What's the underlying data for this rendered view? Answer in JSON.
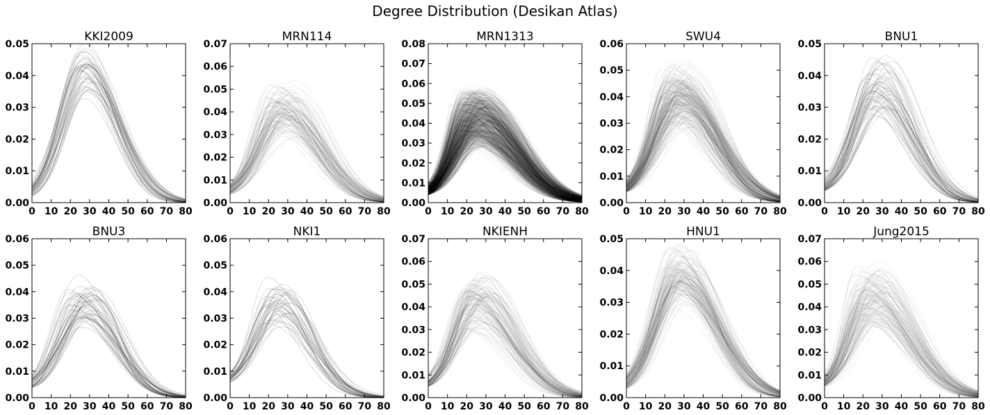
{
  "figure": {
    "title": "Degree Distribution (Desikan Atlas)"
  },
  "chart_data": [
    {
      "type": "line",
      "title": "KKI2009",
      "xlim": [
        0,
        80
      ],
      "ylim": [
        0,
        0.05
      ],
      "xticks": [
        "0",
        "10",
        "20",
        "30",
        "40",
        "50",
        "60",
        "70",
        "80"
      ],
      "yticks": [
        "0.00",
        "0.01",
        "0.02",
        "0.03",
        "0.04",
        "0.05"
      ],
      "series_count": 42,
      "peak_x": 27,
      "peak_y": 0.043,
      "peak_range_x": [
        22,
        34
      ],
      "peak_range_y": [
        0.03,
        0.048
      ],
      "tail_x": 72,
      "start_y": 0.001
    },
    {
      "type": "line",
      "title": "MRN114",
      "xlim": [
        0,
        80
      ],
      "ylim": [
        0,
        0.07
      ],
      "xticks": [
        "0",
        "10",
        "20",
        "30",
        "40",
        "50",
        "60",
        "70",
        "80"
      ],
      "yticks": [
        "0.00",
        "0.01",
        "0.02",
        "0.03",
        "0.04",
        "0.05",
        "0.06",
        "0.07"
      ],
      "series_count": 110,
      "peak_x": 25,
      "peak_y": 0.04,
      "peak_range_x": [
        16,
        42
      ],
      "peak_range_y": [
        0.025,
        0.061
      ],
      "tail_x": 78,
      "start_y": 0.003
    },
    {
      "type": "line",
      "title": "MRN1313",
      "xlim": [
        0,
        80
      ],
      "ylim": [
        0,
        0.08
      ],
      "xticks": [
        "0",
        "10",
        "20",
        "30",
        "40",
        "50",
        "60",
        "70",
        "80"
      ],
      "yticks": [
        "0.00",
        "0.01",
        "0.02",
        "0.03",
        "0.04",
        "0.05",
        "0.06",
        "0.07",
        "0.08"
      ],
      "series_count": 700,
      "peak_x": 22,
      "peak_y": 0.04,
      "peak_range_x": [
        10,
        42
      ],
      "peak_range_y": [
        0.022,
        0.07
      ],
      "tail_x": 80,
      "start_y": 0.003
    },
    {
      "type": "line",
      "title": "SWU4",
      "xlim": [
        0,
        80
      ],
      "ylim": [
        0,
        0.06
      ],
      "xticks": [
        "0",
        "10",
        "20",
        "30",
        "40",
        "50",
        "60",
        "70",
        "80"
      ],
      "yticks": [
        "0.00",
        "0.01",
        "0.02",
        "0.03",
        "0.04",
        "0.05",
        "0.06"
      ],
      "series_count": 230,
      "peak_x": 25,
      "peak_y": 0.04,
      "peak_range_x": [
        15,
        44
      ],
      "peak_range_y": [
        0.025,
        0.058
      ],
      "tail_x": 78,
      "start_y": 0.003
    },
    {
      "type": "line",
      "title": "BNU1",
      "xlim": [
        0,
        80
      ],
      "ylim": [
        0,
        0.05
      ],
      "xticks": [
        "0",
        "10",
        "20",
        "30",
        "40",
        "50",
        "60",
        "70",
        "80"
      ],
      "yticks": [
        "0.00",
        "0.01",
        "0.02",
        "0.03",
        "0.04",
        "0.05"
      ],
      "series_count": 57,
      "peak_x": 25,
      "peak_y": 0.04,
      "peak_range_x": [
        20,
        42
      ],
      "peak_range_y": [
        0.022,
        0.048
      ],
      "tail_x": 75,
      "start_y": 0.003
    },
    {
      "type": "line",
      "title": "BNU3",
      "xlim": [
        0,
        80
      ],
      "ylim": [
        0,
        0.06
      ],
      "xticks": [
        "0",
        "10",
        "20",
        "30",
        "40",
        "50",
        "60",
        "70",
        "80"
      ],
      "yticks": [
        "0.00",
        "0.01",
        "0.02",
        "0.03",
        "0.04",
        "0.05",
        "0.06"
      ],
      "series_count": 47,
      "peak_x": 25,
      "peak_y": 0.038,
      "peak_range_x": [
        15,
        42
      ],
      "peak_range_y": [
        0.022,
        0.051
      ],
      "tail_x": 72,
      "start_y": 0.003
    },
    {
      "type": "line",
      "title": "NKI1",
      "xlim": [
        0,
        80
      ],
      "ylim": [
        0,
        0.06
      ],
      "xticks": [
        "0",
        "10",
        "20",
        "30",
        "40",
        "50",
        "60",
        "70",
        "80"
      ],
      "yticks": [
        "0.00",
        "0.01",
        "0.02",
        "0.03",
        "0.04",
        "0.05",
        "0.06"
      ],
      "series_count": 40,
      "peak_x": 23,
      "peak_y": 0.036,
      "peak_range_x": [
        15,
        42
      ],
      "peak_range_y": [
        0.022,
        0.051
      ],
      "tail_x": 70,
      "start_y": 0.005
    },
    {
      "type": "line",
      "title": "NKIENH",
      "xlim": [
        0,
        80
      ],
      "ylim": [
        0,
        0.07
      ],
      "xticks": [
        "0",
        "10",
        "20",
        "30",
        "40",
        "50",
        "60",
        "70",
        "80"
      ],
      "yticks": [
        "0.00",
        "0.01",
        "0.02",
        "0.03",
        "0.04",
        "0.05",
        "0.06",
        "0.07"
      ],
      "series_count": 100,
      "peak_x": 21,
      "peak_y": 0.042,
      "peak_range_x": [
        14,
        42
      ],
      "peak_range_y": [
        0.022,
        0.06
      ],
      "tail_x": 76,
      "start_y": 0.004
    },
    {
      "type": "line",
      "title": "HNU1",
      "xlim": [
        0,
        80
      ],
      "ylim": [
        0,
        0.05
      ],
      "xticks": [
        "0",
        "10",
        "20",
        "30",
        "40",
        "50",
        "60",
        "70",
        "80"
      ],
      "yticks": [
        "0.00",
        "0.01",
        "0.02",
        "0.03",
        "0.04",
        "0.05"
      ],
      "series_count": 150,
      "peak_x": 26,
      "peak_y": 0.04,
      "peak_range_x": [
        21,
        40
      ],
      "peak_range_y": [
        0.025,
        0.049
      ],
      "tail_x": 78,
      "start_y": 0.002
    },
    {
      "type": "line",
      "title": "Jung2015",
      "xlim": [
        0,
        80
      ],
      "ylim": [
        0,
        0.07
      ],
      "xticks": [
        "0",
        "10",
        "20",
        "30",
        "40",
        "50",
        "60",
        "70",
        "80"
      ],
      "yticks": [
        "0.00",
        "0.01",
        "0.02",
        "0.03",
        "0.04",
        "0.05",
        "0.06",
        "0.07"
      ],
      "series_count": 140,
      "peak_x": 20,
      "peak_y": 0.045,
      "peak_range_x": [
        14,
        44
      ],
      "peak_range_y": [
        0.022,
        0.068
      ],
      "tail_x": 78,
      "start_y": 0.004
    }
  ]
}
